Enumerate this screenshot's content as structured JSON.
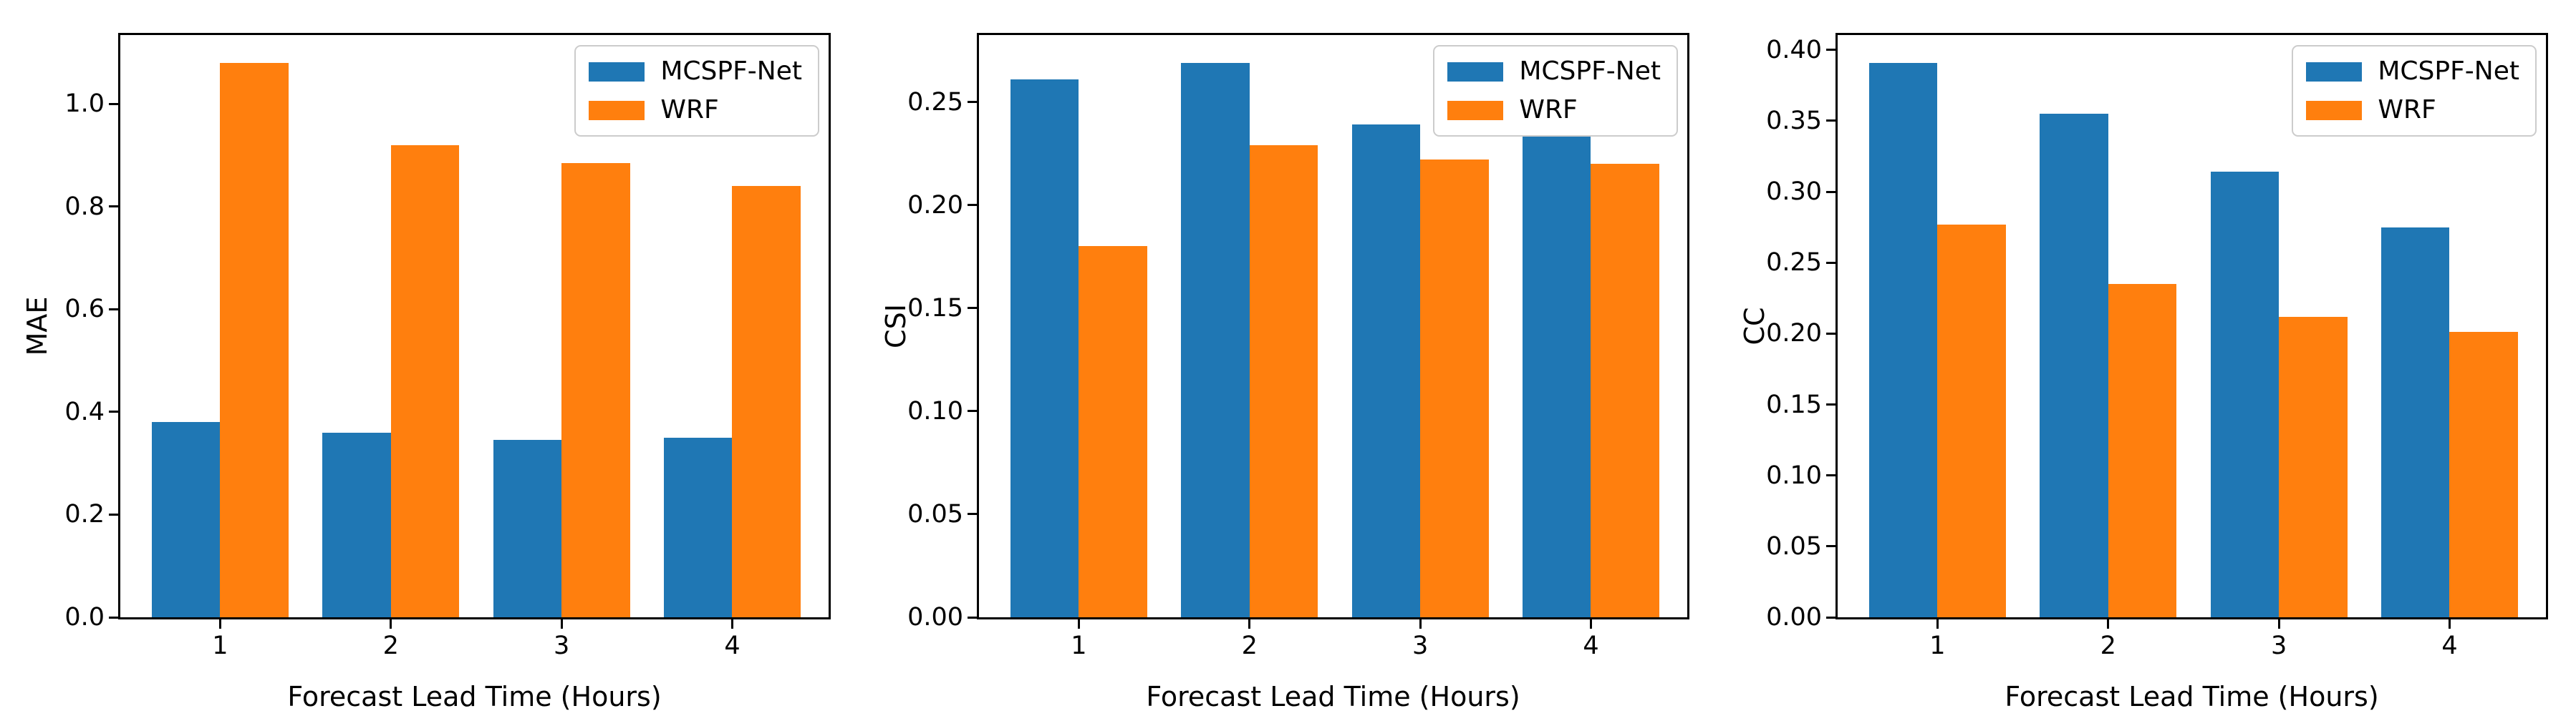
{
  "figure": {
    "background_color": "#ffffff",
    "text_color": "#000000",
    "spine_color": "#000000",
    "legend_border_color": "#cccccc",
    "series_colors": {
      "MCSPF-Net": "#1f77b4",
      "WRF": "#ff7f0e"
    },
    "legend_entries": [
      "MCSPF-Net",
      "WRF"
    ]
  },
  "chart_data": [
    {
      "type": "bar",
      "title": "",
      "ylabel": "MAE",
      "xlabel": "Forecast Lead Time (Hours)",
      "categories": [
        "1",
        "2",
        "3",
        "4"
      ],
      "series": [
        {
          "name": "MCSPF-Net",
          "color": "#1f77b4",
          "values": [
            0.38,
            0.36,
            0.345,
            0.35
          ]
        },
        {
          "name": "WRF",
          "color": "#ff7f0e",
          "values": [
            1.08,
            0.92,
            0.885,
            0.84
          ]
        }
      ],
      "yticks": [
        0.0,
        0.2,
        0.4,
        0.6,
        0.8,
        1.0
      ],
      "ytick_decimals": 1,
      "ylim": [
        0,
        1.134
      ],
      "grid": false,
      "legend_position": "top-right"
    },
    {
      "type": "bar",
      "title": "",
      "ylabel": "CSI",
      "xlabel": "Forecast Lead Time (Hours)",
      "categories": [
        "1",
        "2",
        "3",
        "4"
      ],
      "series": [
        {
          "name": "MCSPF-Net",
          "color": "#1f77b4",
          "values": [
            0.261,
            0.269,
            0.239,
            0.234
          ]
        },
        {
          "name": "WRF",
          "color": "#ff7f0e",
          "values": [
            0.18,
            0.229,
            0.222,
            0.22
          ]
        }
      ],
      "yticks": [
        0.0,
        0.05,
        0.1,
        0.15,
        0.2,
        0.25
      ],
      "ytick_decimals": 2,
      "ylim": [
        0,
        0.2825
      ],
      "grid": false,
      "legend_position": "top-right"
    },
    {
      "type": "bar",
      "title": "",
      "ylabel": "CC",
      "xlabel": "Forecast Lead Time (Hours)",
      "categories": [
        "1",
        "2",
        "3",
        "4"
      ],
      "series": [
        {
          "name": "MCSPF-Net",
          "color": "#1f77b4",
          "values": [
            0.391,
            0.355,
            0.314,
            0.275
          ]
        },
        {
          "name": "WRF",
          "color": "#ff7f0e",
          "values": [
            0.277,
            0.235,
            0.212,
            0.201
          ]
        }
      ],
      "yticks": [
        0.0,
        0.05,
        0.1,
        0.15,
        0.2,
        0.25,
        0.3,
        0.35,
        0.4
      ],
      "ytick_decimals": 2,
      "ylim": [
        0,
        0.4105
      ],
      "grid": false,
      "legend_position": "top-right"
    }
  ]
}
